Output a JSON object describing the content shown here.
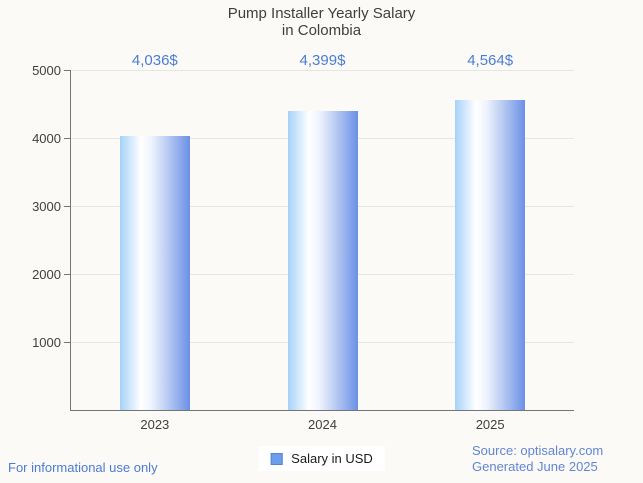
{
  "title": {
    "line1": "Pump Installer Yearly Salary",
    "line2": "in Colombia"
  },
  "chart_data": {
    "type": "bar",
    "title": "Pump Installer Yearly Salary in Colombia",
    "categories": [
      "2023",
      "2024",
      "2025"
    ],
    "series": [
      {
        "name": "Salary in USD",
        "values": [
          4036,
          4399,
          4564
        ]
      }
    ],
    "value_labels": [
      "4,036$",
      "4,399$",
      "4,564$"
    ],
    "xlabel": "",
    "ylabel": "",
    "ylim": [
      0,
      5000
    ],
    "yticks": [
      1000,
      2000,
      3000,
      4000,
      5000
    ],
    "grid": true,
    "legend_position": "bottom"
  },
  "legend": {
    "label": "Salary in USD"
  },
  "footer": {
    "disclaimer": "For informational use only",
    "source": "Source: optisalary.com",
    "generated": "Generated June 2025"
  },
  "colors": {
    "background": "#fbfaf7",
    "accent_blue": "#4c7cd2",
    "footer_blue": "#6186d2",
    "bar_left": "#a6d2f9",
    "bar_highlight": "#ffffff",
    "bar_right": "#6b90e7",
    "legend_marker_fill": "#6d9eeb",
    "legend_marker_border": "#5a83cf",
    "axis": "#757575",
    "gridline": "#e6e6e4",
    "text_dark": "#3f3f3f"
  }
}
